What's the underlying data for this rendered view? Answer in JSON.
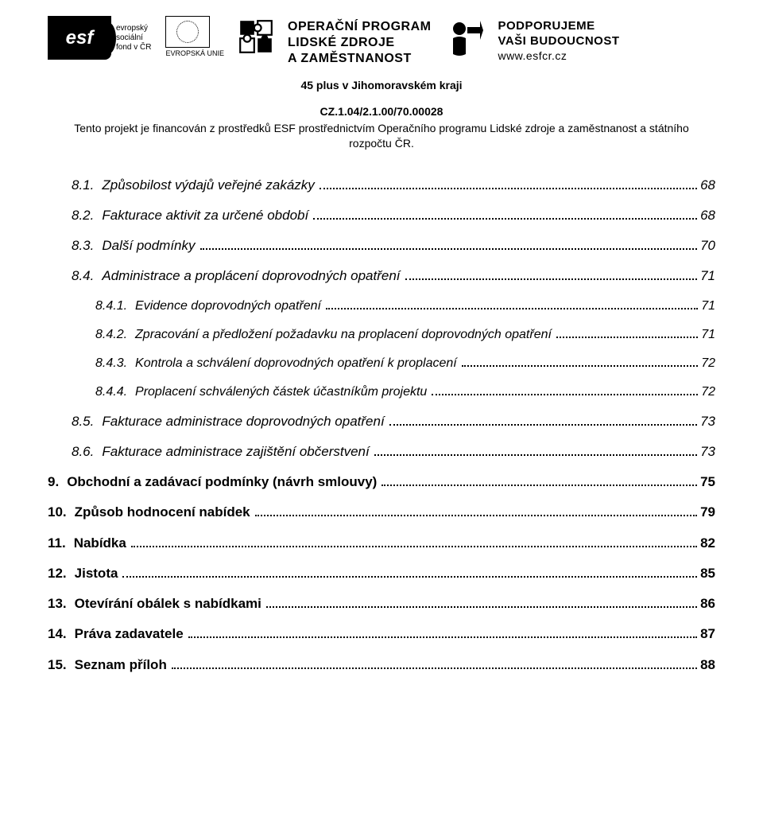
{
  "header": {
    "esf_label": "esf",
    "esf_caption_lines": [
      "evropský",
      "sociální",
      "fond v ČR"
    ],
    "eu_label": "EVROPSKÁ UNIE",
    "op_lines": [
      "OPERAČNÍ PROGRAM",
      "LIDSKÉ ZDROJE",
      "A ZAMĚSTNANOST"
    ],
    "support_lines": [
      "PODPORUJEME",
      "VAŠI BUDOUCNOST"
    ],
    "support_url": "www.esfcr.cz"
  },
  "project": {
    "title": "45 plus v Jihomoravském kraji",
    "code": "CZ.1.04/2.1.00/70.00028",
    "funding": "Tento projekt je financován z prostředků ESF prostřednictvím Operačního programu Lidské zdroje a zaměstnanost a státního rozpočtu ČR."
  },
  "toc": [
    {
      "level": 1,
      "num": "8.1.",
      "label": "Způsobilost výdajů veřejné zakázky",
      "page": "68"
    },
    {
      "level": 1,
      "num": "8.2.",
      "label": "Fakturace aktivit za určené období",
      "page": "68"
    },
    {
      "level": 1,
      "num": "8.3.",
      "label": "Další podmínky",
      "page": "70"
    },
    {
      "level": 1,
      "num": "8.4.",
      "label": "Administrace a proplácení doprovodných opatření",
      "page": "71"
    },
    {
      "level": 2,
      "num": "8.4.1.",
      "label": "Evidence doprovodných opatření",
      "page": "71"
    },
    {
      "level": 2,
      "num": "8.4.2.",
      "label": "Zpracování a předložení požadavku na proplacení doprovodných opatření",
      "page": "71"
    },
    {
      "level": 2,
      "num": "8.4.3.",
      "label": "Kontrola a schválení doprovodných opatření k proplacení",
      "page": "72"
    },
    {
      "level": 2,
      "num": "8.4.4.",
      "label": "Proplacení schválených částek účastníkům projektu",
      "page": "72"
    },
    {
      "level": 1,
      "num": "8.5.",
      "label": "Fakturace administrace doprovodných opatření",
      "page": "73"
    },
    {
      "level": 1,
      "num": "8.6.",
      "label": "Fakturace administrace zajištění občerstvení",
      "page": "73"
    },
    {
      "level": 0,
      "num": "9.",
      "label": "Obchodní a zadávací podmínky (návrh smlouvy)",
      "page": "75"
    },
    {
      "level": 0,
      "num": "10.",
      "label": "Způsob hodnocení nabídek",
      "page": "79"
    },
    {
      "level": 0,
      "num": "11.",
      "label": "Nabídka",
      "page": "82"
    },
    {
      "level": 0,
      "num": "12.",
      "label": "Jistota",
      "page": "85"
    },
    {
      "level": 0,
      "num": "13.",
      "label": "Otevírání obálek s nabídkami",
      "page": "86"
    },
    {
      "level": 0,
      "num": "14.",
      "label": "Práva zadavatele",
      "page": "87"
    },
    {
      "level": 0,
      "num": "15.",
      "label": "Seznam příloh",
      "page": "88"
    }
  ]
}
